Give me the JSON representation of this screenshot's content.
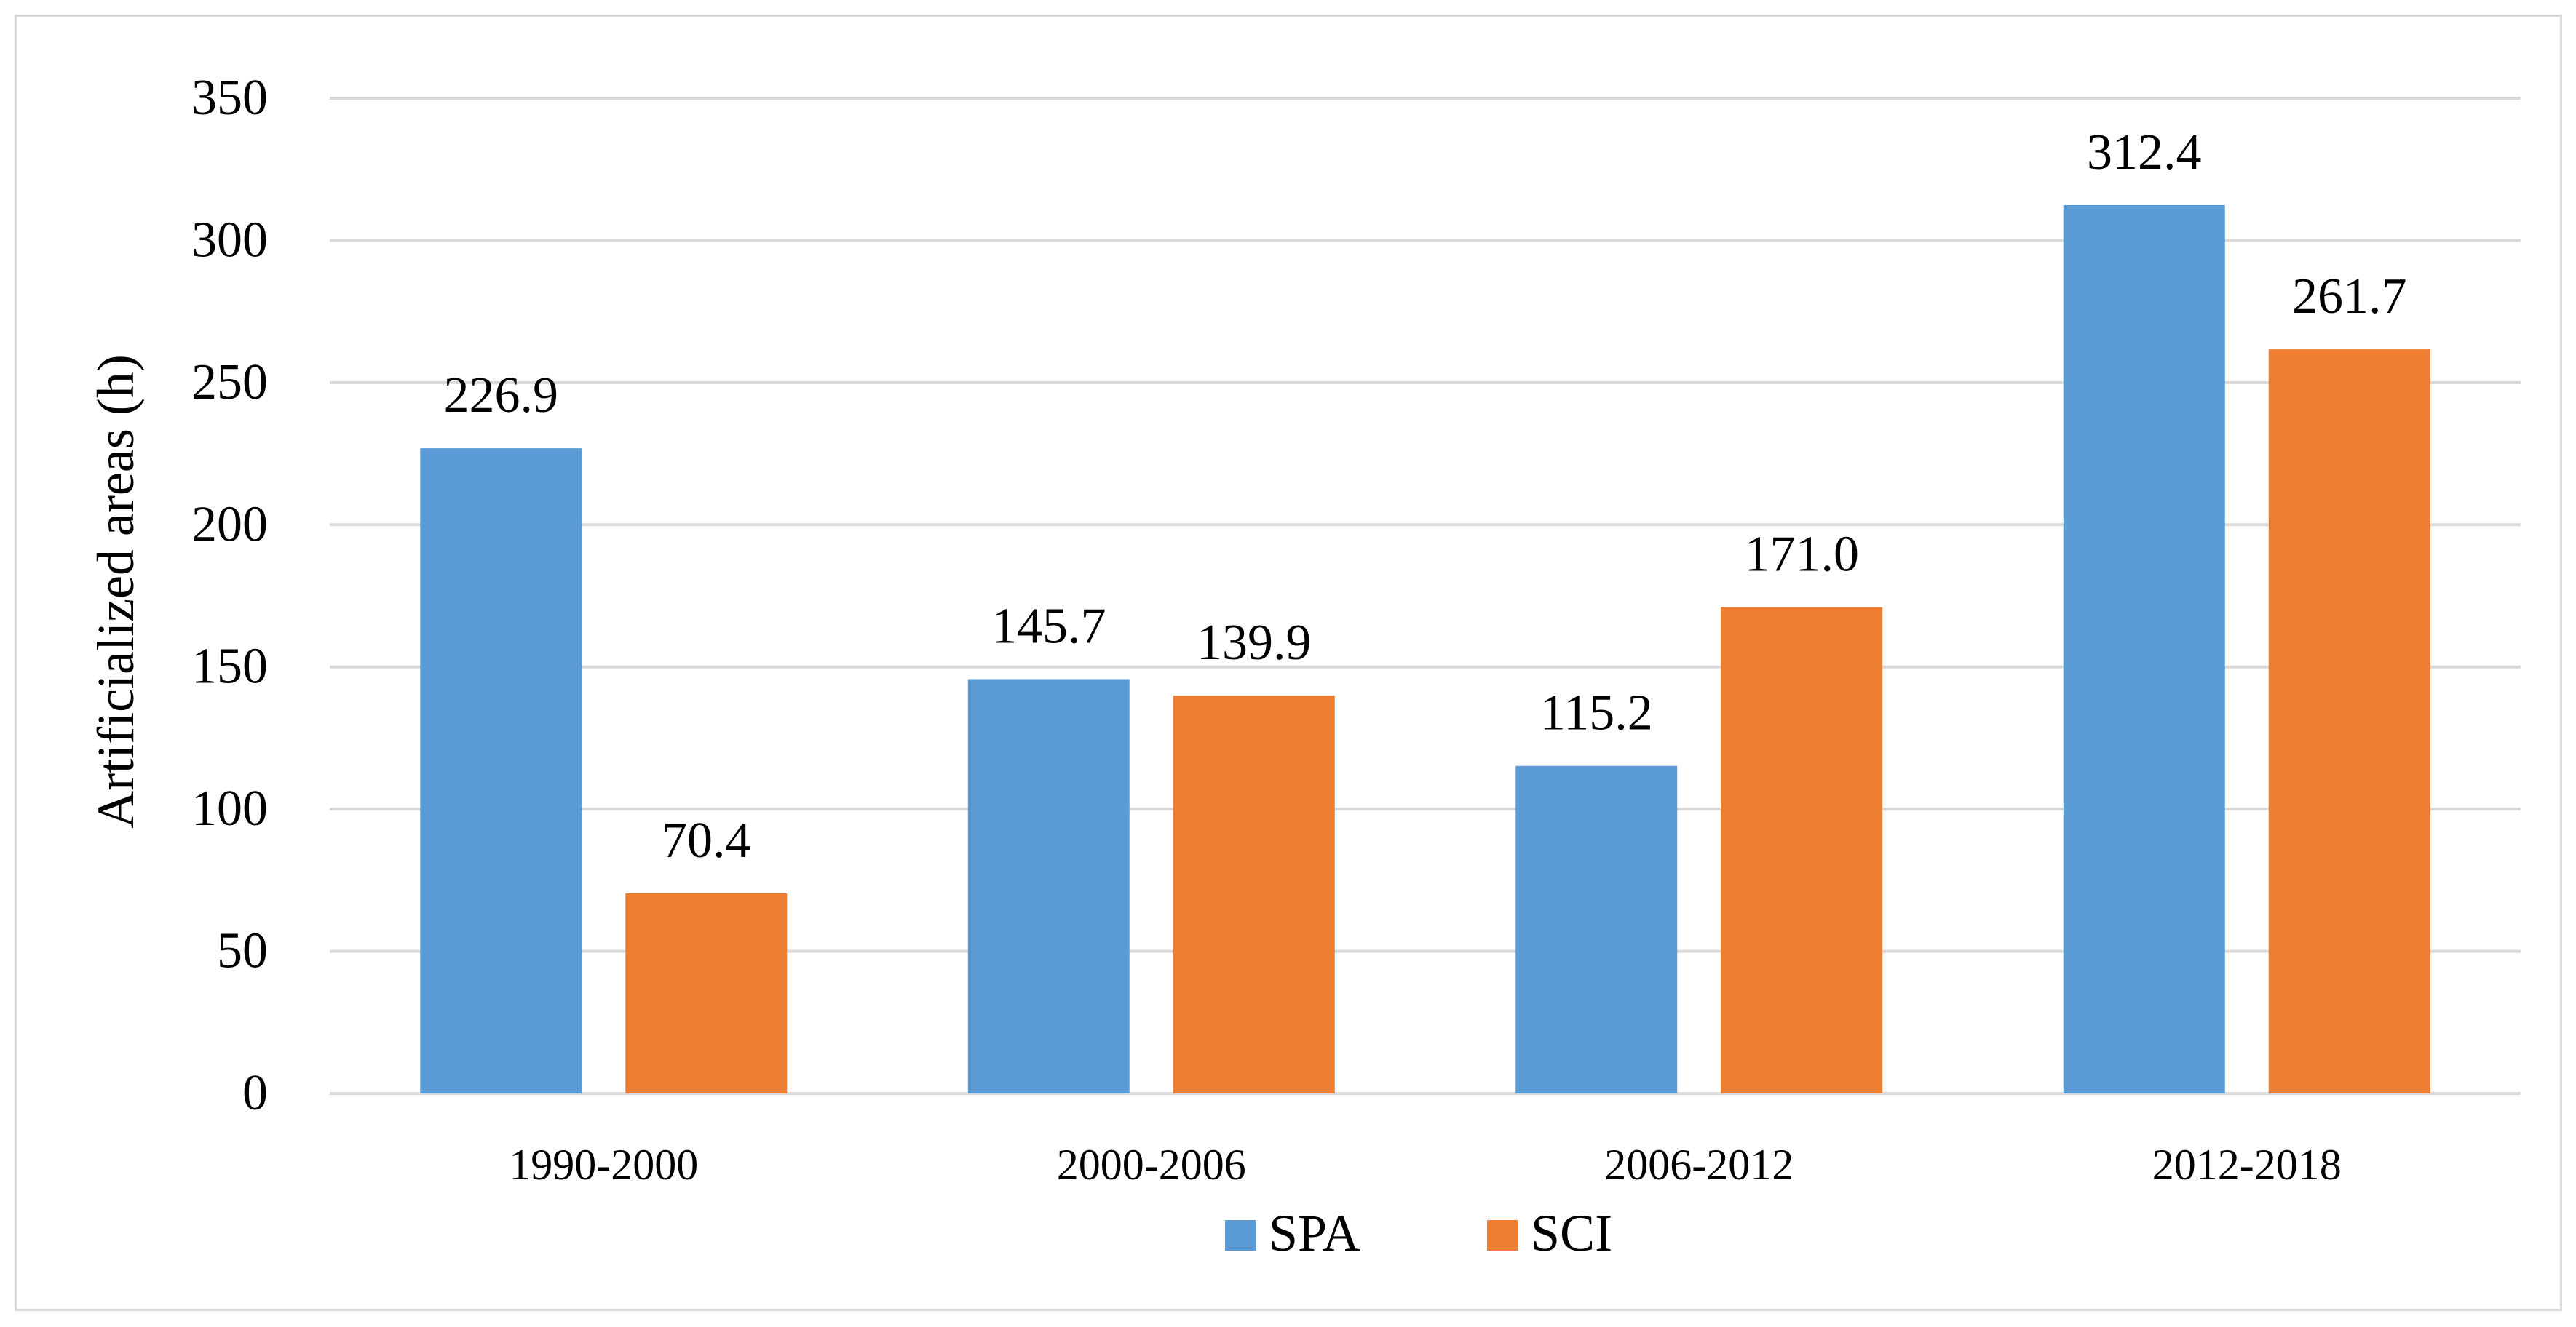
{
  "chart_data": {
    "type": "bar",
    "title": "",
    "xlabel": "",
    "ylabel": "Artificialized areas (h)",
    "categories": [
      "1990-2000",
      "2000-2006",
      "2006-2012",
      "2012-2018"
    ],
    "series": [
      {
        "name": "SPA",
        "color": "#5b9bd5",
        "values": [
          226.9,
          145.7,
          115.2,
          312.4
        ],
        "labels": [
          "226.9",
          "145.7",
          "115.2",
          "312.4"
        ]
      },
      {
        "name": "SCI",
        "color": "#ed7d31",
        "values": [
          70.4,
          139.9,
          171.0,
          261.7
        ],
        "labels": [
          "70.4",
          "139.9",
          "171.0",
          "261.7"
        ]
      }
    ],
    "ylim": [
      0,
      350
    ],
    "yticks": [
      0,
      50,
      100,
      150,
      200,
      250,
      300,
      350
    ],
    "ytick_labels": [
      "0",
      "50",
      "100",
      "150",
      "200",
      "250",
      "300",
      "350"
    ],
    "grid": true,
    "gridline_color": "#d9d9d9",
    "legend_position": "bottom-center"
  }
}
